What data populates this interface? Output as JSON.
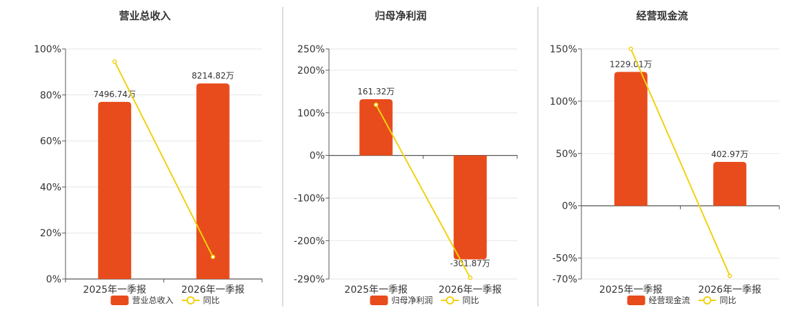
{
  "colors": {
    "bar": "#e84c1c",
    "line": "#f2d10f",
    "grid": "#e6e6e6",
    "axis": "#555555",
    "divider": "#bbbbbb"
  },
  "chart_data": [
    {
      "type": "bar",
      "title": "营业总收入",
      "categories": [
        "2025年一季报",
        "2026年一季报"
      ],
      "ylim": [
        0,
        100
      ],
      "yticks": [
        0,
        20,
        40,
        60,
        80,
        100
      ],
      "ytick_labels": [
        "0%",
        "20%",
        "40%",
        "60%",
        "80%",
        "100%"
      ],
      "series": [
        {
          "name": "营业总收入",
          "kind": "bar",
          "values": [
            77.0,
            85.0
          ],
          "labels": [
            "7496.74万",
            "8214.82万"
          ]
        },
        {
          "name": "同比",
          "kind": "line",
          "values": [
            94.5,
            9.6
          ]
        }
      ],
      "legend": "bottom",
      "grid": true
    },
    {
      "type": "bar",
      "title": "归母净利润",
      "categories": [
        "2025年一季报",
        "2026年一季报"
      ],
      "ylim": [
        -290,
        250
      ],
      "yticks": [
        -290,
        -200,
        -100,
        0,
        100,
        200,
        250
      ],
      "ytick_labels": [
        "-290%",
        "-200%",
        "-100%",
        "0%",
        "100%",
        "200%",
        "250%"
      ],
      "series": [
        {
          "name": "归母净利润",
          "kind": "bar",
          "values": [
            132,
            -244
          ],
          "labels": [
            "161.32万",
            "-301.87万"
          ]
        },
        {
          "name": "同比",
          "kind": "line",
          "values": [
            119,
            -287
          ]
        }
      ],
      "legend": "bottom",
      "grid": true
    },
    {
      "type": "bar",
      "title": "经营现金流",
      "categories": [
        "2025年一季报",
        "2026年一季报"
      ],
      "ylim": [
        -70,
        150
      ],
      "yticks": [
        -70,
        -50,
        0,
        50,
        100,
        150
      ],
      "ytick_labels": [
        "-70%",
        "-50%",
        "0%",
        "50%",
        "100%",
        "150%"
      ],
      "series": [
        {
          "name": "经营现金流",
          "kind": "bar",
          "values": [
            128,
            42
          ],
          "labels": [
            "1229.01万",
            "402.97万"
          ]
        },
        {
          "name": "同比",
          "kind": "line",
          "values": [
            150,
            -67
          ]
        }
      ],
      "legend": "bottom",
      "grid": true
    }
  ]
}
